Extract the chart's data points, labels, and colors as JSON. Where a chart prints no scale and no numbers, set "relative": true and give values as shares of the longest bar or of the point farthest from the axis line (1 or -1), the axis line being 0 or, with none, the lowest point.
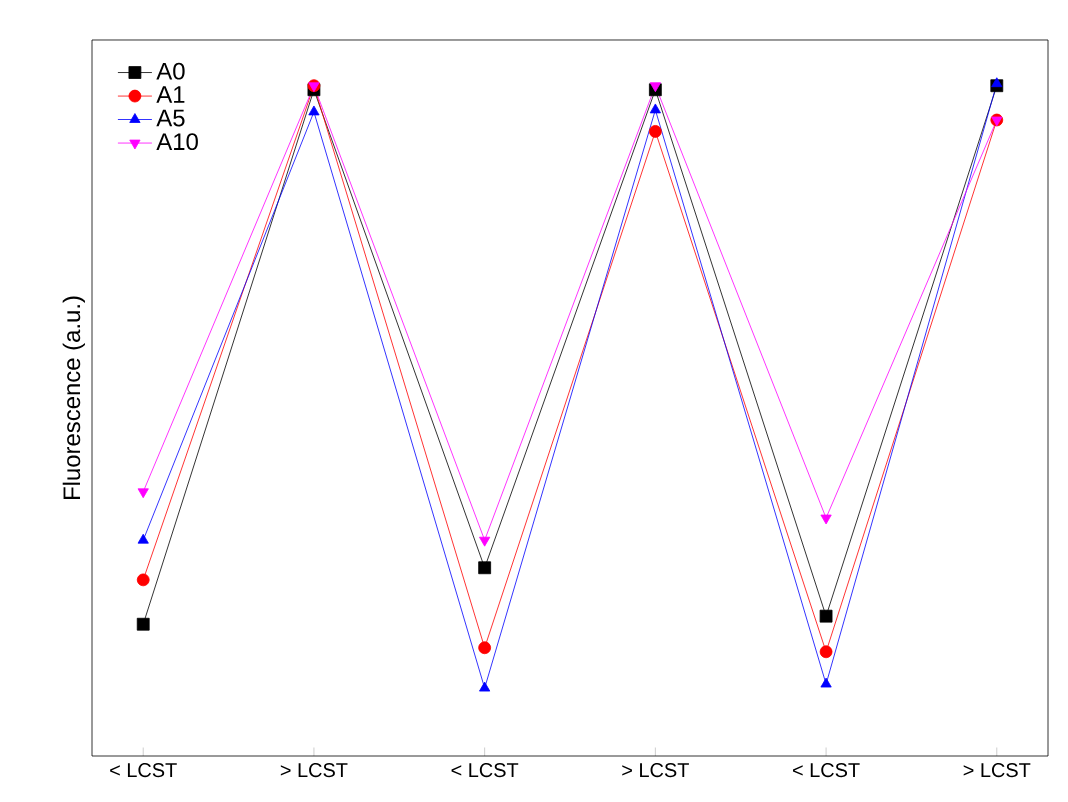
{
  "chart_data": {
    "type": "line",
    "ylabel": "Fluorescence (a.u.)",
    "categories": [
      "< LCST",
      "> LCST",
      "< LCST",
      "> LCST",
      "< LCST",
      "> LCST"
    ],
    "relative": true,
    "legend": "top left",
    "grid": false,
    "line_style": "solid",
    "series": [
      {
        "name": "A0",
        "color": "#000000",
        "marker": "square",
        "values": [
          0.196,
          0.991,
          0.28,
          0.991,
          0.208,
          0.997
        ]
      },
      {
        "name": "A1",
        "color": "#ff0000",
        "marker": "circle",
        "values": [
          0.262,
          0.997,
          0.161,
          0.929,
          0.155,
          0.946
        ]
      },
      {
        "name": "A5",
        "color": "#0000ff",
        "marker": "triangle",
        "values": [
          0.321,
          0.958,
          0.101,
          0.961,
          0.107,
          1.0
        ]
      },
      {
        "name": "A10",
        "color": "#ff00ff",
        "marker": "triangle-down",
        "values": [
          0.393,
          0.997,
          0.321,
          0.997,
          0.354,
          0.946
        ]
      }
    ]
  }
}
